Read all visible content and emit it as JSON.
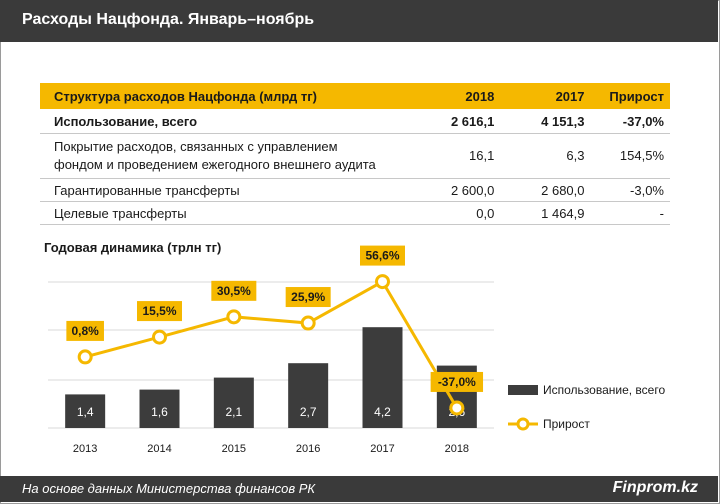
{
  "header": {
    "title": "Расходы Нацфонда. Январь–ноябрь"
  },
  "table": {
    "columns": [
      "Структура расходов Нацфонда (млрд тг)",
      "2018",
      "2017",
      "Прирост"
    ],
    "rows": [
      {
        "label": "Использование, всего",
        "v2018": "2 616,1",
        "v2017": "4 151,3",
        "growth": "-37,0%"
      },
      {
        "label_line1": "Покрытие расходов, связанных с управлением",
        "label_line2": "фондом и проведением ежегодного внешнего аудита",
        "v2018": "16,1",
        "v2017": "6,3",
        "growth": "154,5%"
      },
      {
        "label": "Гарантированные трансферты",
        "v2018": "2 600,0",
        "v2017": "2 680,0",
        "growth": "-3,0%"
      },
      {
        "label": "Целевые трансферты",
        "v2018": "0,0",
        "v2017": "1 464,9",
        "growth": "-"
      }
    ]
  },
  "chart_title": "Годовая динамика  (трлн тг)",
  "chart_data": {
    "type": "bar",
    "categories": [
      "2013",
      "2014",
      "2015",
      "2016",
      "2017",
      "2018"
    ],
    "series": [
      {
        "name": "Использование, всего",
        "type": "bar",
        "values": [
          1.4,
          1.6,
          2.1,
          2.7,
          4.2,
          2.6
        ],
        "labels": [
          "1,4",
          "1,6",
          "2,1",
          "2,7",
          "4,2",
          "2,6"
        ]
      },
      {
        "name": "Прирост",
        "type": "line",
        "values": [
          0.8,
          15.5,
          30.5,
          25.9,
          56.6,
          -37.0
        ],
        "labels": [
          "0,8%",
          "15,5%",
          "30,5%",
          "25,9%",
          "56,6%",
          "-37,0%"
        ]
      }
    ],
    "legend": "right",
    "grid": true,
    "colors": {
      "bar": "#3c3c3c",
      "line": "#f5b800"
    }
  },
  "footer": {
    "source": "На основе данных Министерства финансов РК",
    "brand": "Finprom.kz"
  }
}
